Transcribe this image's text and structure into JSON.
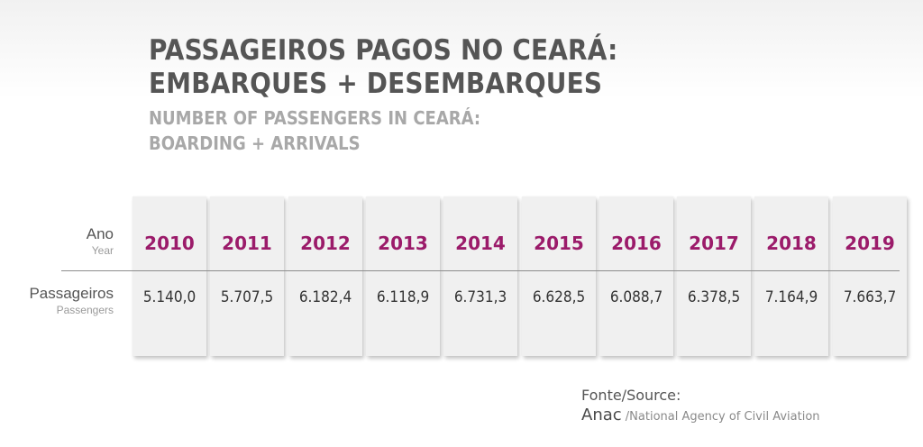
{
  "title": {
    "pt_line1": "PASSAGEIROS PAGOS NO CEARÁ:",
    "pt_line2": "EMBARQUES + DESEMBARQUES",
    "en_line1": "NUMBER OF PASSENGERS IN CEARÁ:",
    "en_line2": "BOARDING + ARRIVALS"
  },
  "row_labels": {
    "year_main": "Ano",
    "year_sub": "Year",
    "passengers_main": "Passageiros",
    "passengers_sub": "Passengers"
  },
  "source": {
    "heading": "Fonte/Source:",
    "name": "Anac",
    "description": " /National Agency of Civil Aviation"
  },
  "colors": {
    "year_text": "#9b1b6a",
    "title_dark": "#555555",
    "title_light": "#a8a8a8",
    "column_bg": "#f0f0f0"
  },
  "chart_data": {
    "type": "table",
    "title": "PASSAGEIROS PAGOS NO CEARÁ: EMBARQUES + DESEMBARQUES",
    "subtitle": "NUMBER OF PASSENGERS IN CEARÁ: BOARDING + ARRIVALS",
    "categories": [
      "2010",
      "2011",
      "2012",
      "2013",
      "2014",
      "2015",
      "2016",
      "2017",
      "2018",
      "2019"
    ],
    "value_labels": [
      "5.140,0",
      "5.707,5",
      "6.182,4",
      "6.118,9",
      "6.731,3",
      "6.628,5",
      "6.088,7",
      "6.378,5",
      "7.164,9",
      "7.663,7"
    ],
    "series": [
      {
        "name": "Passageiros",
        "values": [
          5140.0,
          5707.5,
          6182.4,
          6118.9,
          6731.3,
          6628.5,
          6088.7,
          6378.5,
          7164.9,
          7663.7
        ]
      }
    ]
  }
}
